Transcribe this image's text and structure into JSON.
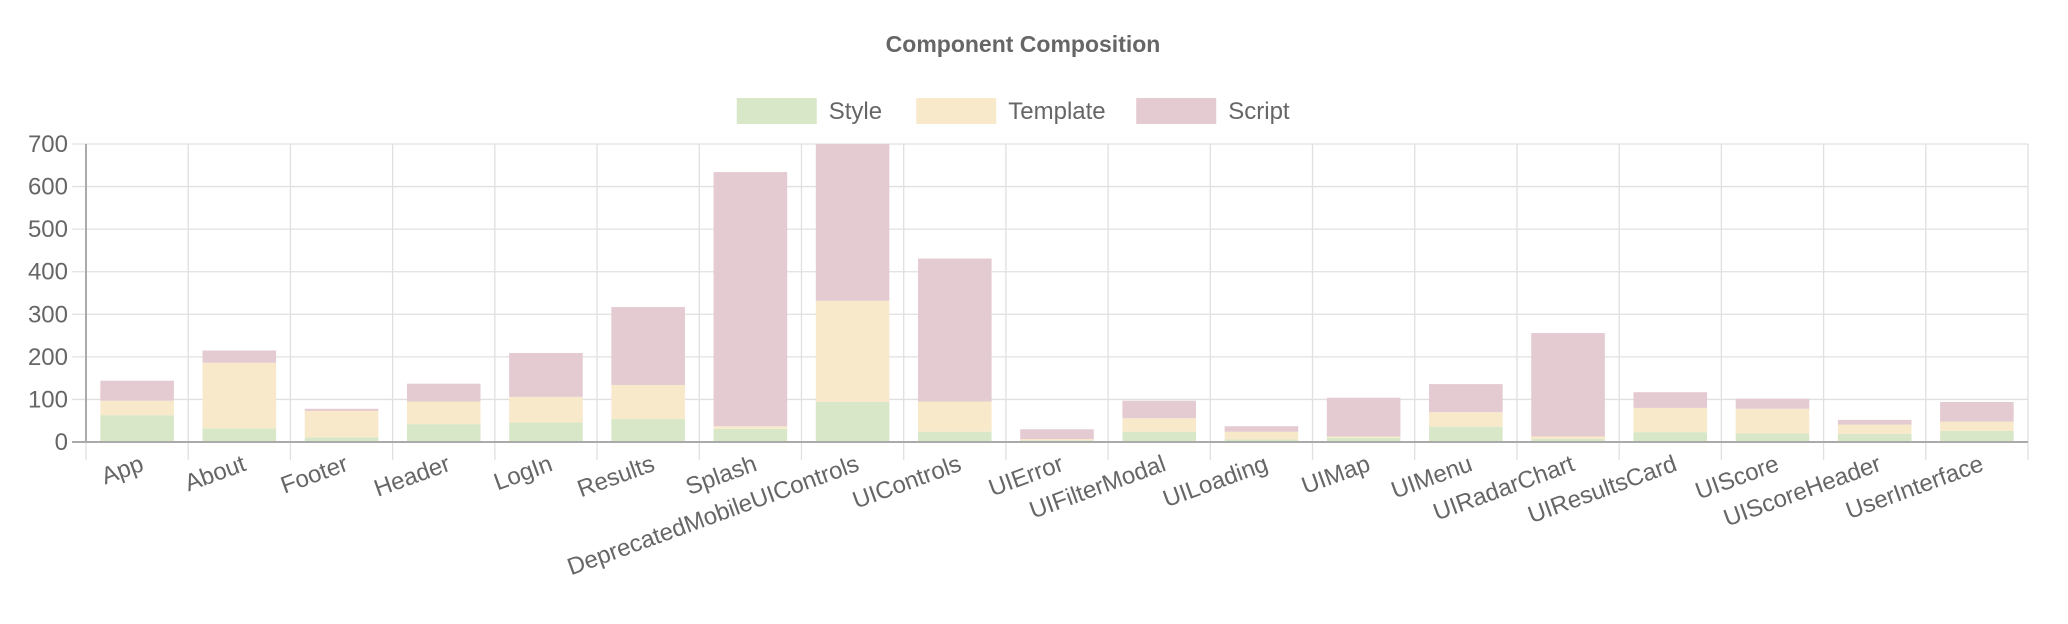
{
  "chart_data": {
    "type": "bar",
    "stacked": true,
    "title": "Component Composition",
    "categories": [
      "App",
      "About",
      "Footer",
      "Header",
      "LogIn",
      "Results",
      "Splash",
      "DeprecatedMobileUIControls",
      "UIControls",
      "UIError",
      "UIFilterModal",
      "UILoading",
      "UIMap",
      "UIMenu",
      "UIRadarChart",
      "UIResultsCard",
      "UIScore",
      "UIScoreHeader",
      "UserInterface"
    ],
    "series": [
      {
        "name": "Style",
        "color": "#d9e7c9",
        "values": [
          63,
          32,
          11,
          42,
          46,
          54,
          31,
          94,
          24,
          4,
          24,
          6,
          10,
          36,
          7,
          23,
          20,
          19,
          26
        ]
      },
      {
        "name": "Template",
        "color": "#f8e9cb",
        "values": [
          34,
          154,
          62,
          53,
          60,
          80,
          6,
          238,
          71,
          3,
          32,
          18,
          3,
          34,
          6,
          57,
          58,
          22,
          22
        ]
      },
      {
        "name": "Script",
        "color": "#e4cbd1",
        "values": [
          47,
          29,
          5,
          42,
          103,
          183,
          597,
          368,
          336,
          23,
          41,
          13,
          91,
          66,
          243,
          37,
          24,
          11,
          46
        ]
      }
    ],
    "ylim": [
      0,
      700
    ],
    "yticks": [
      0,
      100,
      200,
      300,
      400,
      500,
      600,
      700
    ],
    "grid": true,
    "legend_position": "top"
  }
}
